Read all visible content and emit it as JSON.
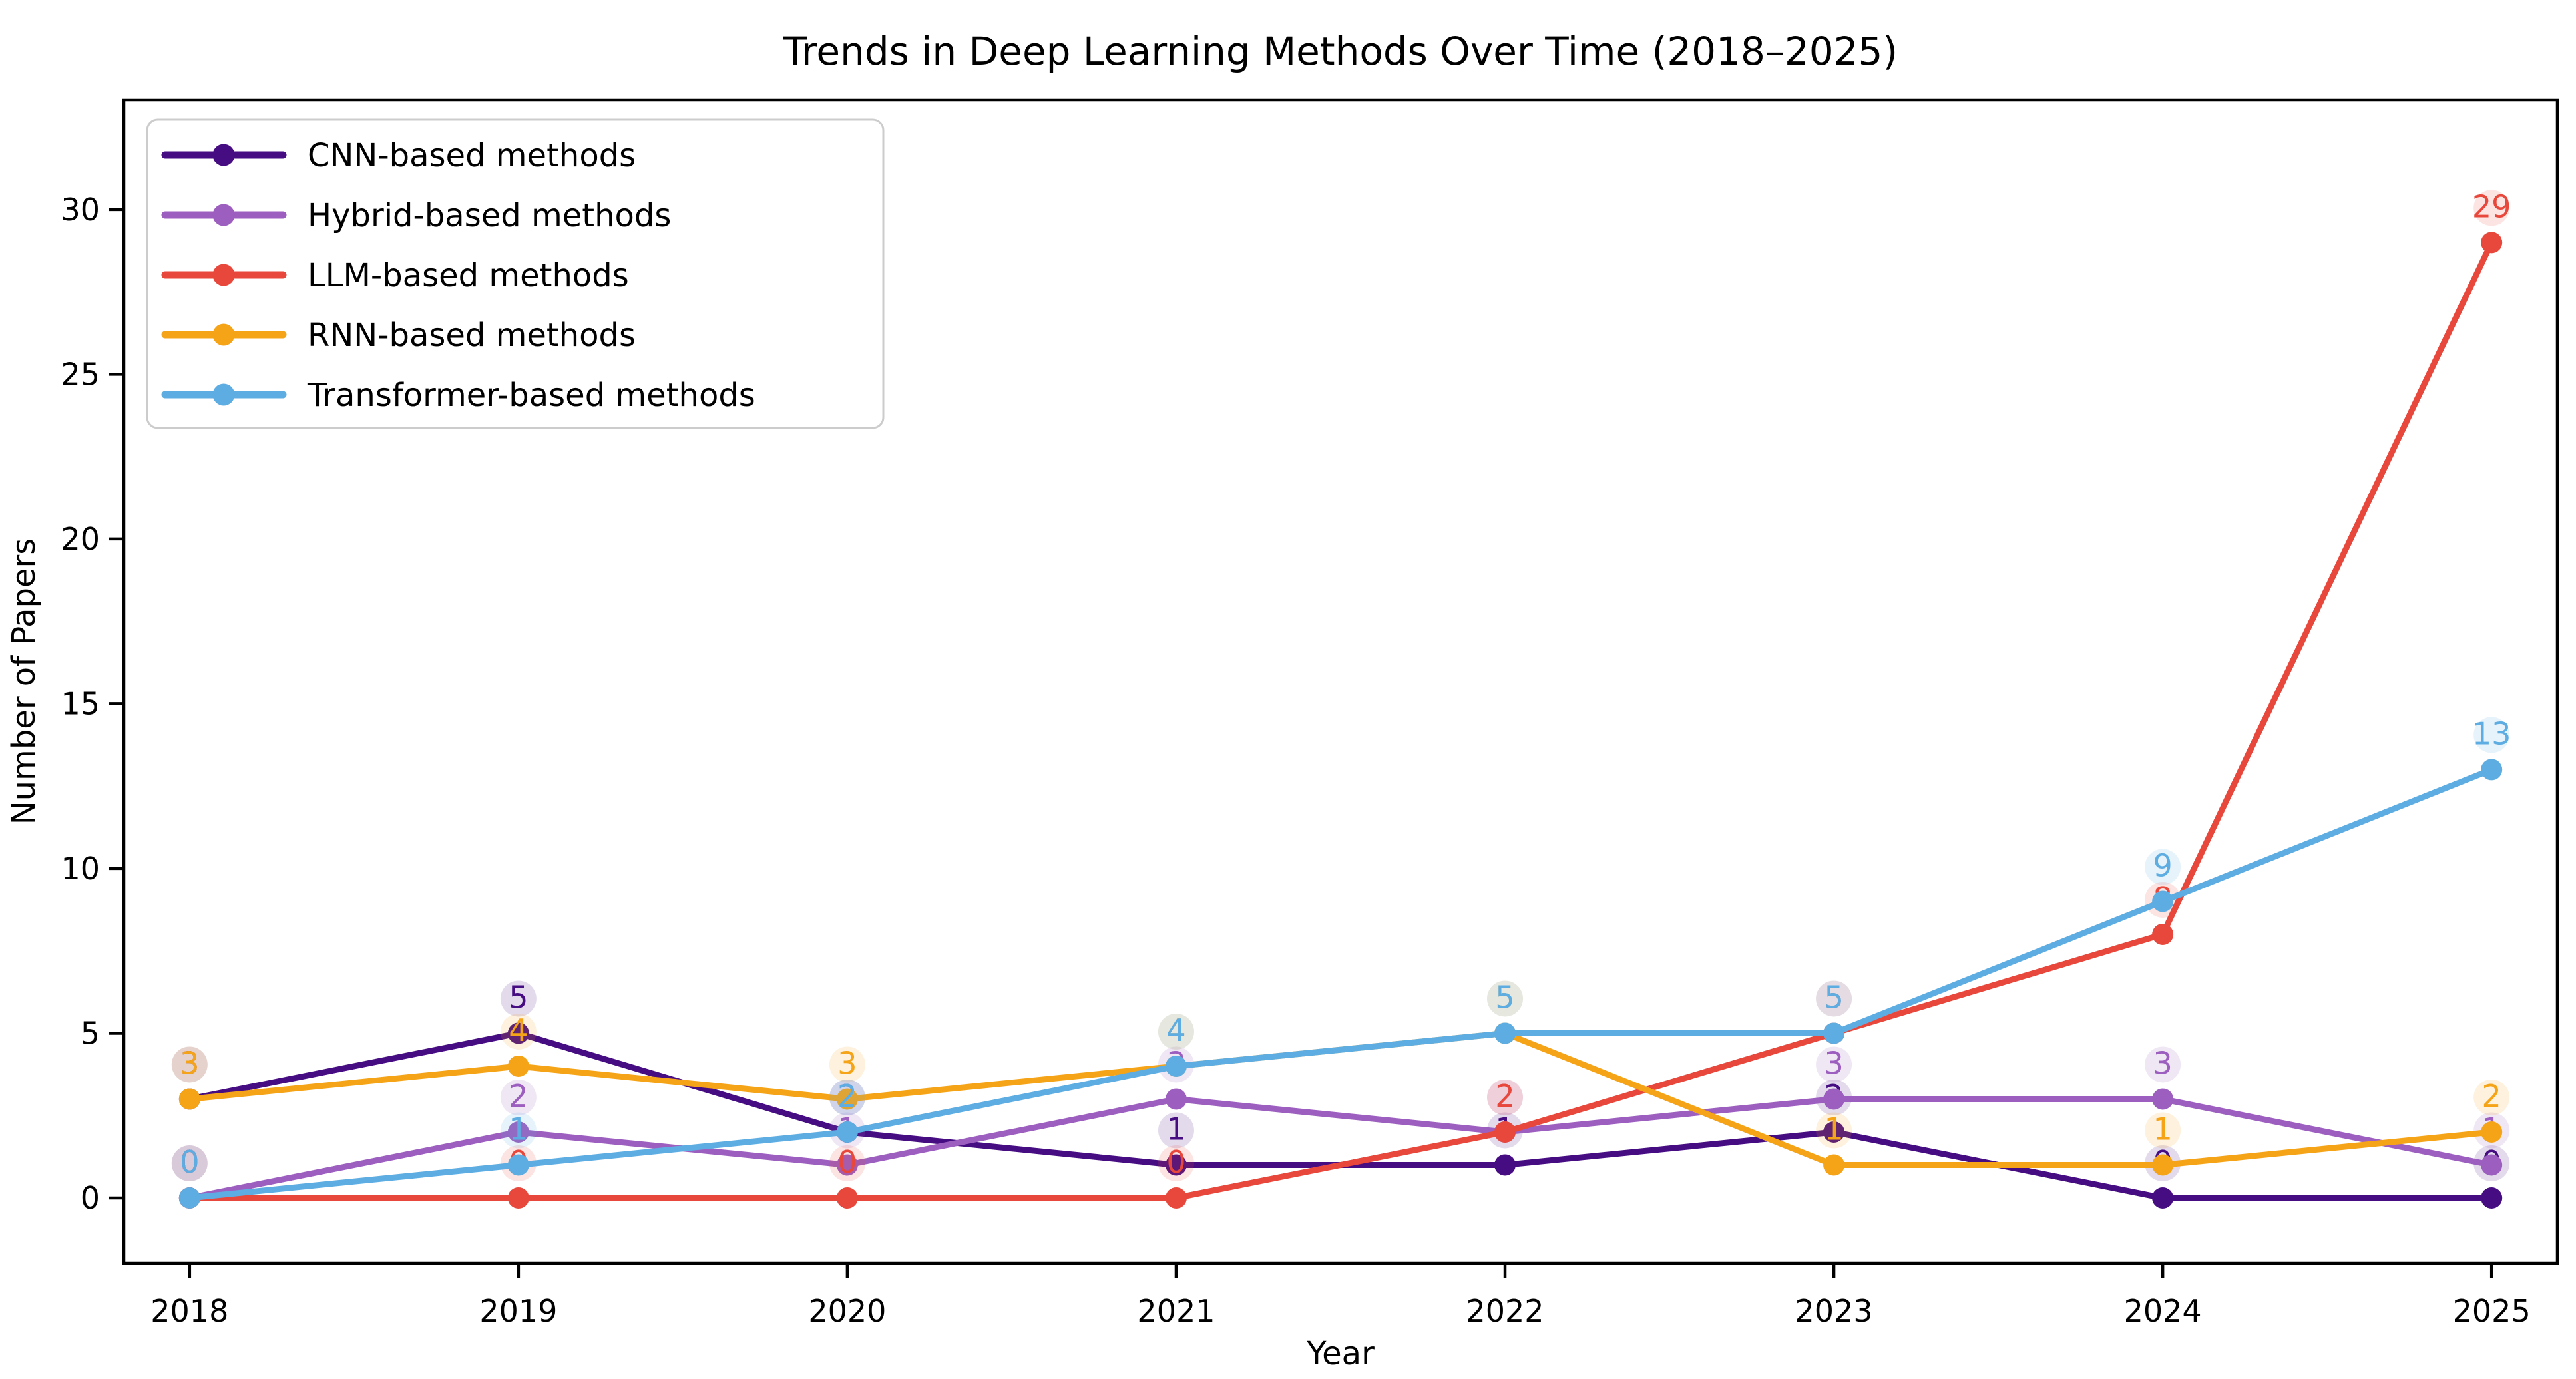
{
  "page": {
    "background": "#ffffff"
  },
  "chart_data": {
    "type": "line",
    "title": "Trends in Deep Learning Methods Over Time (2018–2025)",
    "xlabel": "Year",
    "ylabel": "Number of Papers",
    "x": [
      2018,
      2019,
      2020,
      2021,
      2022,
      2023,
      2024,
      2025
    ],
    "xticks": [
      "2018",
      "2019",
      "2020",
      "2021",
      "2022",
      "2023",
      "2024",
      "2025"
    ],
    "yticks": [
      0,
      5,
      10,
      15,
      20,
      25,
      30
    ],
    "xlim": [
      2017.8,
      2025.2
    ],
    "ylim": [
      -1.98,
      33.33
    ],
    "grid": false,
    "value_labels": true,
    "legend": {
      "position": "upper left",
      "items": [
        "CNN-based methods",
        "Hybrid-based methods",
        "LLM-based methods",
        "RNN-based methods",
        "Transformer-based methods"
      ]
    },
    "series": [
      {
        "name": "CNN-based methods",
        "color": "#460d82",
        "values": [
          3,
          5,
          2,
          1,
          1,
          2,
          0,
          0
        ]
      },
      {
        "name": "Hybrid-based methods",
        "color": "#9c5fbf",
        "values": [
          0,
          2,
          1,
          3,
          2,
          3,
          3,
          1
        ]
      },
      {
        "name": "LLM-based methods",
        "color": "#e8473b",
        "values": [
          0,
          0,
          0,
          0,
          2,
          5,
          8,
          29
        ]
      },
      {
        "name": "RNN-based methods",
        "color": "#f5a418",
        "values": [
          3,
          4,
          3,
          4,
          5,
          1,
          1,
          2
        ]
      },
      {
        "name": "Transformer-based methods",
        "color": "#5dade2",
        "values": [
          0,
          1,
          2,
          4,
          5,
          5,
          9,
          13
        ]
      }
    ],
    "axis_color": "#000000",
    "text_color": "#000000",
    "legend_border_color": "#cccccc"
  }
}
